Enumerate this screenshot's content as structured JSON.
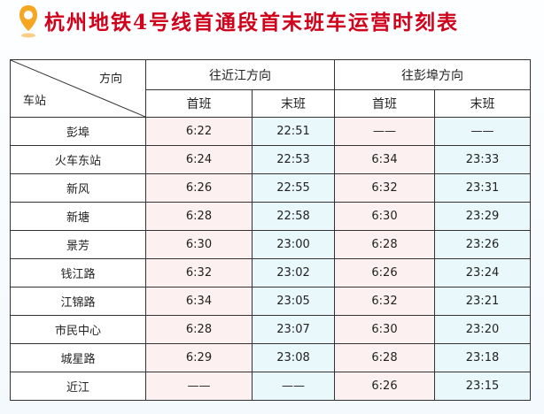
{
  "title": "杭州地铁4号线首通段首末班车运营时刻表",
  "colors": {
    "title": "#d0021b",
    "pin": "#f5a623",
    "first_bg": "#fdf0f0",
    "last_bg": "#e9f8fb"
  },
  "header": {
    "direction_label": "方向",
    "station_label": "车站",
    "directions": [
      {
        "label": "往近江方向",
        "first": "首班",
        "last": "末班"
      },
      {
        "label": "往彭埠方向",
        "first": "首班",
        "last": "末班"
      }
    ]
  },
  "rows": [
    {
      "station": "彭埠",
      "d1_first": "6:22",
      "d1_last": "22:51",
      "d2_first": "——",
      "d2_last": "——"
    },
    {
      "station": "火车东站",
      "d1_first": "6:24",
      "d1_last": "22:53",
      "d2_first": "6:34",
      "d2_last": "23:33"
    },
    {
      "station": "新风",
      "d1_first": "6:26",
      "d1_last": "22:55",
      "d2_first": "6:32",
      "d2_last": "23:31"
    },
    {
      "station": "新塘",
      "d1_first": "6:28",
      "d1_last": "22:58",
      "d2_first": "6:30",
      "d2_last": "23:29"
    },
    {
      "station": "景芳",
      "d1_first": "6:30",
      "d1_last": "23:00",
      "d2_first": "6:28",
      "d2_last": "23:26"
    },
    {
      "station": "钱江路",
      "d1_first": "6:32",
      "d1_last": "23:02",
      "d2_first": "6:26",
      "d2_last": "23:24"
    },
    {
      "station": "江锦路",
      "d1_first": "6:34",
      "d1_last": "23:05",
      "d2_first": "6:32",
      "d2_last": "23:21"
    },
    {
      "station": "市民中心",
      "d1_first": "6:28",
      "d1_last": "23:07",
      "d2_first": "6:30",
      "d2_last": "23:20"
    },
    {
      "station": "城星路",
      "d1_first": "6:29",
      "d1_last": "23:08",
      "d2_first": "6:28",
      "d2_last": "23:18"
    },
    {
      "station": "近江",
      "d1_first": "——",
      "d1_last": "——",
      "d2_first": "6:26",
      "d2_last": "23:15"
    }
  ]
}
